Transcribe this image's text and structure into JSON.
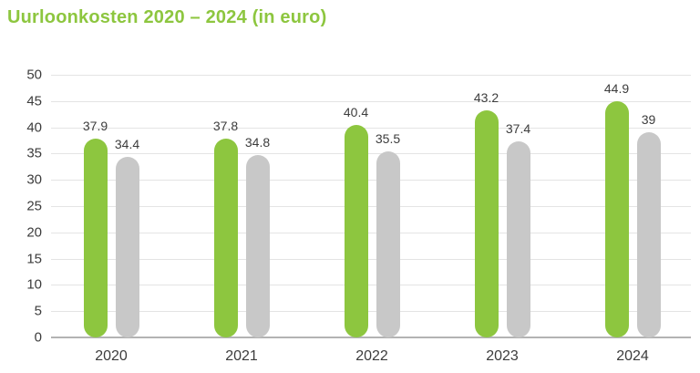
{
  "title": "Uurloonkosten 2020 – 2024 (in euro)",
  "colors": {
    "title_green": "#8DC63F",
    "bar_green": "#8DC63F",
    "bar_gray": "#C8C8C8",
    "gridline": "#E4E4E4",
    "baseline": "#B3B3B3",
    "text": "#3C3C3C",
    "background": "#FFFFFF"
  },
  "chart_data": {
    "type": "bar",
    "title": "Uurloonkosten 2020 – 2024 (in euro)",
    "categories": [
      "2020",
      "2021",
      "2022",
      "2023",
      "2024"
    ],
    "series": [
      {
        "id": "green",
        "color": "#8DC63F",
        "values": [
          37.9,
          37.8,
          40.4,
          43.2,
          44.9
        ]
      },
      {
        "id": "gray",
        "color": "#C8C8C8",
        "values": [
          34.4,
          34.8,
          35.5,
          37.4,
          39
        ]
      }
    ],
    "value_labels": [
      [
        "37.9",
        "34.4"
      ],
      [
        "37.8",
        "34.8"
      ],
      [
        "40.4",
        "35.5"
      ],
      [
        "43.2",
        "37.4"
      ],
      [
        "44.9",
        "39"
      ]
    ],
    "xlabel": "",
    "ylabel": "",
    "ylim": [
      0,
      50
    ],
    "yticks": [
      0,
      5,
      10,
      15,
      20,
      25,
      30,
      35,
      40,
      45,
      50
    ],
    "grid": true,
    "legend": false,
    "data_labels": true
  }
}
